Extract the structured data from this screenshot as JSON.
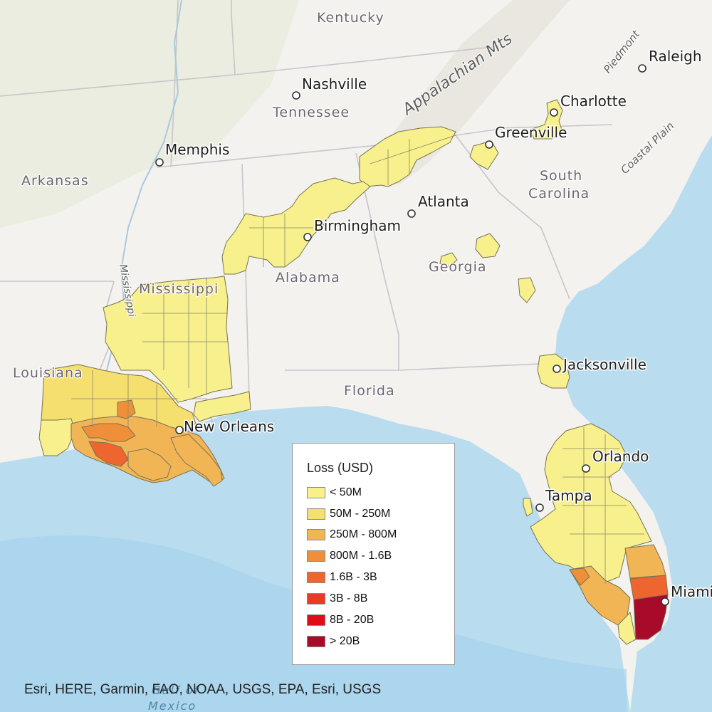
{
  "map": {
    "basemap": "light topographic",
    "colors": {
      "land": "#f3f2ee",
      "water": "#b9dcef",
      "deep_water": "#a7d3ec",
      "boundary": "#c9c4ca",
      "county_outline": "#777355"
    },
    "states": [
      "Kentucky",
      "Tennessee",
      "Arkansas",
      "Mississippi",
      "Alabama",
      "Georgia",
      "Louisiana",
      "Florida"
    ],
    "state_labels": {
      "kentucky": "Kentucky",
      "tennessee": "Tennessee",
      "arkansas": "Arkansas",
      "south_carolina_1": "South",
      "south_carolina_2": "Carolina",
      "mississippi": "Mississippi",
      "alabama": "Alabama",
      "georgia": "Georgia",
      "louisiana": "Louisiana",
      "florida": "Florida"
    },
    "cities": {
      "nashville": "Nashville",
      "memphis": "Memphis",
      "charlotte": "Charlotte",
      "raleigh": "Raleigh",
      "greenville": "Greenville",
      "atlanta": "Atlanta",
      "birmingham": "Birmingham",
      "jacksonville": "Jacksonville",
      "new_orleans": "New Orleans",
      "orlando": "Orlando",
      "tampa": "Tampa",
      "miami": "Miami"
    },
    "physical_labels": {
      "appalachian": "Appalachian Mts",
      "piedmont": "Piedmont",
      "coastal_plain": "Coastal Plain",
      "mississippi_river": "Mississippi",
      "gulf_1": "Gulf of",
      "gulf_2": "Mexico"
    }
  },
  "legend": {
    "title": "Loss (USD)",
    "classes": [
      {
        "label": "< 50M",
        "color": "#f7f08c"
      },
      {
        "label": "50M - 250M",
        "color": "#f5df6e"
      },
      {
        "label": "250M - 800M",
        "color": "#f2b556"
      },
      {
        "label": "800M - 1.6B",
        "color": "#ef8f3a"
      },
      {
        "label": "1.6B - 3B",
        "color": "#ee6530"
      },
      {
        "label": "3B - 8B",
        "color": "#ec3a22"
      },
      {
        "label": "8B - 20B",
        "color": "#df0d15"
      },
      {
        "label": "> 20B",
        "color": "#a80a2a"
      }
    ]
  },
  "regions": [
    {
      "name": "Tennessee-Appalachian corridor",
      "loss_class": "< 50M"
    },
    {
      "name": "Alabama north-central",
      "loss_class": "< 50M"
    },
    {
      "name": "Mississippi",
      "loss_class": "< 50M"
    },
    {
      "name": "Louisiana interior",
      "loss_class": "50M - 250M"
    },
    {
      "name": "Louisiana central coast",
      "loss_class": "250M - 800M"
    },
    {
      "name": "Louisiana Vermilion/Iberia",
      "loss_class": "800M - 1.6B"
    },
    {
      "name": "Louisiana St. Mary",
      "loss_class": "1.6B - 3B"
    },
    {
      "name": "Charlotte area",
      "loss_class": "< 50M"
    },
    {
      "name": "Greenville area",
      "loss_class": "< 50M"
    },
    {
      "name": "Georgia scattered",
      "loss_class": "< 50M"
    },
    {
      "name": "Jacksonville area",
      "loss_class": "< 50M"
    },
    {
      "name": "Central Florida",
      "loss_class": "< 50M"
    },
    {
      "name": "Southwest Florida",
      "loss_class": "250M - 800M"
    },
    {
      "name": "Palm Beach",
      "loss_class": "250M - 800M"
    },
    {
      "name": "Broward",
      "loss_class": "1.6B - 3B"
    },
    {
      "name": "Miami-Dade",
      "loss_class": "> 20B"
    }
  ],
  "attribution": "Esri, HERE, Garmin, FAO, NOAA, USGS, EPA, Esri, USGS"
}
